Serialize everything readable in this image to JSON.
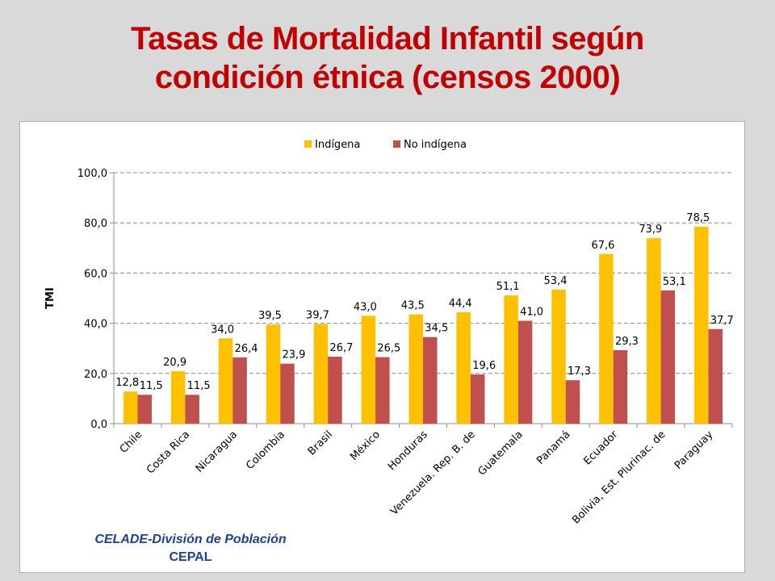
{
  "title_lines": [
    "Tasas de Mortalidad Infantil según",
    "condición étnica (censos 2000)"
  ],
  "credit": {
    "line1": "CELADE-División de Población",
    "line2": "CEPAL"
  },
  "colors": {
    "title": "#c00000",
    "indigena": "#ffc000",
    "no_indigena": "#c0504d",
    "credit": "#1f3f8f"
  },
  "chart_data": {
    "type": "bar",
    "title": "",
    "xlabel": "",
    "ylabel": "TMI",
    "ylim": [
      0,
      100
    ],
    "yticks": [
      "0,0",
      "20,0",
      "40,0",
      "60,0",
      "80,0",
      "100,0"
    ],
    "grid": true,
    "legend_position": "top",
    "categories": [
      "Chile",
      "Costa Rica",
      "Nicaragua",
      "Colombia",
      "Brasil",
      "México",
      "Honduras",
      "Venezuela. Rep. B. de",
      "Guatemala",
      "Panamá",
      "Ecuador",
      "Bolivia, Est. Plurinac. de",
      "Paraguay"
    ],
    "series": [
      {
        "name": "Indígena",
        "values": [
          12.8,
          20.9,
          34.0,
          39.5,
          39.7,
          43.0,
          43.5,
          44.4,
          51.1,
          53.4,
          67.6,
          73.9,
          78.5
        ],
        "labels": [
          "12,8",
          "20,9",
          "34,0",
          "39,5",
          "39,7",
          "43,0",
          "43,5",
          "44,4",
          "51,1",
          "53,4",
          "67,6",
          "73,9",
          "78,5"
        ]
      },
      {
        "name": "No indígena",
        "values": [
          11.5,
          11.5,
          26.4,
          23.9,
          26.7,
          26.5,
          34.5,
          19.6,
          41.0,
          17.3,
          29.3,
          53.1,
          37.7
        ],
        "labels": [
          "11,5",
          "11,5",
          "26,4",
          "23,9",
          "26,7",
          "26,5",
          "34,5",
          "19,6",
          "41,0",
          "17,3",
          "29,3",
          "53,1",
          "37,7"
        ]
      }
    ]
  }
}
